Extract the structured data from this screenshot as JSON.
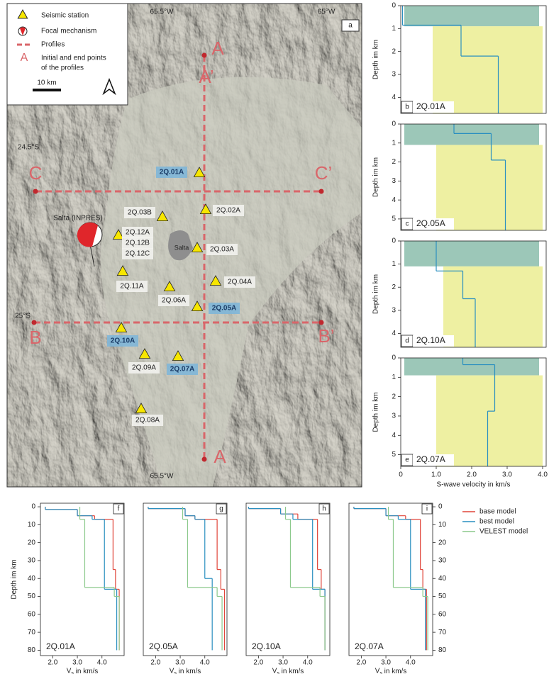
{
  "map": {
    "panel": "a",
    "top_ticks": [
      "65.5°W",
      "65°W"
    ],
    "left_ticks": [
      "24.5°S",
      "25°S"
    ],
    "bottom_tick": "65.5°W",
    "legend": {
      "station": "Seismic station",
      "focal": "Focal mechanism",
      "profiles": "Profiles",
      "point_symbol": "A",
      "points": [
        "Initial and end points",
        "of the profiles"
      ],
      "scale": "10 km"
    },
    "profile_labels": [
      "A",
      "A’",
      "C",
      "C’",
      "B",
      "B’",
      "A"
    ],
    "town": "Salta",
    "focal_label": "Salta (INPRES)",
    "stations": [
      {
        "labels": [
          "2Q.01A"
        ],
        "highlight": true
      },
      {
        "labels": [
          "2Q.02A"
        ],
        "highlight": false
      },
      {
        "labels": [
          "2Q.03B"
        ],
        "highlight": false
      },
      {
        "labels": [
          "2Q.12A",
          "2Q.12B",
          "2Q.12C"
        ],
        "highlight": false
      },
      {
        "labels": [
          "2Q.03A"
        ],
        "highlight": false
      },
      {
        "labels": [
          "2Q.04A"
        ],
        "highlight": false
      },
      {
        "labels": [
          "2Q.11A"
        ],
        "highlight": false
      },
      {
        "labels": [
          "2Q.06A"
        ],
        "highlight": false
      },
      {
        "labels": [
          "2Q.05A"
        ],
        "highlight": true
      },
      {
        "labels": [
          "2Q.10A"
        ],
        "highlight": true
      },
      {
        "labels": [
          "2Q.09A"
        ],
        "highlight": false
      },
      {
        "labels": [
          "2Q.07A"
        ],
        "highlight": true
      },
      {
        "labels": [
          "2Q.08A"
        ],
        "highlight": false
      }
    ]
  },
  "chart_data": [
    {
      "type": "step",
      "panel": "b",
      "station": "2Q.01A",
      "ylabel": "Depth im km",
      "xlim": [
        0,
        4.1
      ],
      "ylim": [
        0,
        4.7
      ],
      "yticks": [
        0,
        1,
        2,
        3,
        4
      ],
      "ensemble": {
        "color": "#eef0a2",
        "depths": [
          0,
          0.9,
          4.7
        ],
        "low": [
          0.1,
          0.9
        ],
        "high": [
          3.9,
          4.0
        ]
      },
      "series": [
        {
          "color": "#2a8fc0",
          "depths": [
            0,
            0.85,
            2.2,
            4.7
          ],
          "values": [
            0.05,
            1.7,
            2.75
          ]
        }
      ]
    },
    {
      "type": "step",
      "panel": "c",
      "station": "2Q.05A",
      "ylabel": "Depth im km",
      "xlim": [
        0,
        4.1
      ],
      "ylim": [
        0,
        5.6
      ],
      "yticks": [
        0,
        1,
        2,
        3,
        4,
        5
      ],
      "ensemble": {
        "color": "#eef0a2",
        "depths": [
          0,
          1.1,
          5.6
        ],
        "low": [
          0.1,
          1.0
        ],
        "high": [
          3.9,
          4.0
        ]
      },
      "series": [
        {
          "color": "#2a8fc0",
          "depths": [
            0,
            0.5,
            1.9,
            5.6
          ],
          "values": [
            1.5,
            2.55,
            2.95
          ]
        }
      ]
    },
    {
      "type": "step",
      "panel": "d",
      "station": "2Q.10A",
      "ylabel": "Depth im km",
      "xlim": [
        0,
        4.1
      ],
      "ylim": [
        0,
        4.6
      ],
      "yticks": [
        0,
        1,
        2,
        3,
        4
      ],
      "ensemble": {
        "color": "#eef0a2",
        "depths": [
          0,
          1.1,
          4.6
        ],
        "low": [
          0.1,
          1.2
        ],
        "high": [
          3.9,
          4.0
        ]
      },
      "series": [
        {
          "color": "#2a8fc0",
          "depths": [
            0,
            1.3,
            2.5,
            4.6
          ],
          "values": [
            1.0,
            1.75,
            2.1
          ]
        }
      ]
    },
    {
      "type": "step",
      "panel": "e",
      "station": "2Q.07A",
      "ylabel": "Depth im km",
      "xlabel": "S-wave velocity in km/s",
      "xlim": [
        0,
        4.1
      ],
      "ylim": [
        0,
        5.6
      ],
      "yticks": [
        0,
        1,
        2,
        3,
        4,
        5
      ],
      "xticks": [
        0,
        {
          "value": 1,
          "label": "1.0"
        },
        {
          "value": 2,
          "label": "2.0"
        },
        {
          "value": 3,
          "label": "3.0"
        },
        {
          "value": 4,
          "label": "4.0"
        }
      ],
      "ensemble": {
        "color": "#eef0a2",
        "depths": [
          0,
          0.9,
          5.6
        ],
        "low": [
          0.1,
          1.0
        ],
        "high": [
          3.9,
          4.0
        ]
      },
      "series": [
        {
          "color": "#2a8fc0",
          "depths": [
            0,
            0.35,
            2.75,
            5.6
          ],
          "values": [
            1.75,
            2.65,
            2.45
          ]
        }
      ]
    },
    {
      "type": "step",
      "panel": "f",
      "station": "2Q.01A",
      "ylabel": "Depth im km",
      "xlabel": "V",
      "xlabel_sub": "s",
      "xlabel_rest": " in km/s",
      "yaxis": "left",
      "xlim": [
        1.5,
        4.9
      ],
      "ylim": [
        -2,
        83
      ],
      "yticks": [
        0,
        10,
        20,
        30,
        40,
        50,
        60,
        70,
        80
      ],
      "xticks": [
        {
          "value": 2,
          "label": "2.0"
        },
        {
          "value": 3,
          "label": "3.0"
        },
        {
          "value": 4,
          "label": "4.0"
        }
      ],
      "series": [
        {
          "name": "base model",
          "color": "#e0453a",
          "depths": [
            0,
            1.5,
            5,
            7,
            35,
            46,
            80
          ],
          "values": [
            1.7,
            3.0,
            3.7,
            4.45,
            4.55,
            4.7
          ]
        },
        {
          "name": "best model",
          "color": "#2a8fc0",
          "depths": [
            0,
            1.5,
            5,
            7,
            46,
            80
          ],
          "values": [
            1.7,
            3.0,
            3.6,
            4.1,
            4.6
          ]
        },
        {
          "name": "VELEST model",
          "color": "#8cc98c",
          "depths": [
            0,
            7,
            45,
            50,
            80
          ],
          "values": [
            3.1,
            3.3,
            4.5,
            4.7
          ]
        }
      ]
    },
    {
      "type": "step",
      "panel": "g",
      "station": "2Q.05A",
      "xlabel": "V",
      "xlabel_sub": "s",
      "xlabel_rest": " in km/s",
      "xlim": [
        1.5,
        4.9
      ],
      "ylim": [
        -2,
        83
      ],
      "xticks": [
        {
          "value": 2,
          "label": "2.0"
        },
        {
          "value": 3,
          "label": "3.0"
        },
        {
          "value": 4,
          "label": "4.0"
        }
      ],
      "series": [
        {
          "color": "#e0453a",
          "depths": [
            0,
            1,
            5,
            7,
            35,
            46,
            80
          ],
          "values": [
            1.7,
            3.2,
            3.6,
            4.5,
            4.65,
            4.8
          ]
        },
        {
          "color": "#2a8fc0",
          "depths": [
            0,
            1,
            5,
            7,
            40,
            80
          ],
          "values": [
            1.7,
            3.2,
            3.6,
            4.0,
            4.3
          ]
        },
        {
          "color": "#8cc98c",
          "depths": [
            0,
            7,
            45,
            50,
            80
          ],
          "values": [
            3.1,
            3.3,
            4.5,
            4.7
          ]
        }
      ]
    },
    {
      "type": "step",
      "panel": "h",
      "station": "2Q.10A",
      "xlabel": "V",
      "xlabel_sub": "s",
      "xlabel_rest": " in km/s",
      "xlim": [
        1.5,
        4.9
      ],
      "ylim": [
        -2,
        83
      ],
      "xticks": [
        {
          "value": 2,
          "label": "2.0"
        },
        {
          "value": 3,
          "label": "3.0"
        },
        {
          "value": 4,
          "label": "4.0"
        }
      ],
      "series": [
        {
          "color": "#e0453a",
          "depths": [
            0,
            1,
            4,
            7,
            35,
            46,
            80
          ],
          "values": [
            1.6,
            2.9,
            3.6,
            4.4,
            4.55,
            4.7
          ]
        },
        {
          "color": "#2a8fc0",
          "depths": [
            0,
            1,
            4,
            7,
            46,
            80
          ],
          "values": [
            1.6,
            2.9,
            3.4,
            4.2,
            4.7
          ]
        },
        {
          "color": "#8cc98c",
          "depths": [
            0,
            7,
            45,
            50,
            80
          ],
          "values": [
            3.1,
            3.3,
            4.5,
            4.7
          ]
        }
      ]
    },
    {
      "type": "step",
      "panel": "i",
      "station": "2Q.07A",
      "xlabel": "V",
      "xlabel_sub": "s",
      "xlabel_rest": " in km/s",
      "yaxis": "right",
      "xlim": [
        1.5,
        4.9
      ],
      "ylim": [
        -2,
        83
      ],
      "yticks": [
        0,
        10,
        20,
        30,
        40,
        50,
        60,
        70,
        80
      ],
      "xticks": [
        {
          "value": 2,
          "label": "2.0"
        },
        {
          "value": 3,
          "label": "3.0"
        },
        {
          "value": 4,
          "label": "4.0"
        }
      ],
      "series": [
        {
          "color": "#e0453a",
          "depths": [
            0,
            1,
            5,
            7,
            35,
            46,
            80
          ],
          "values": [
            1.7,
            3.0,
            3.8,
            4.4,
            4.5,
            4.65
          ]
        },
        {
          "color": "#2a8fc0",
          "depths": [
            0,
            1,
            5,
            7,
            46,
            80
          ],
          "values": [
            1.7,
            3.0,
            3.5,
            4.0,
            4.6
          ]
        },
        {
          "color": "#8cc98c",
          "depths": [
            0,
            7,
            45,
            50,
            80
          ],
          "values": [
            3.1,
            3.3,
            4.5,
            4.7
          ]
        }
      ]
    }
  ]
}
